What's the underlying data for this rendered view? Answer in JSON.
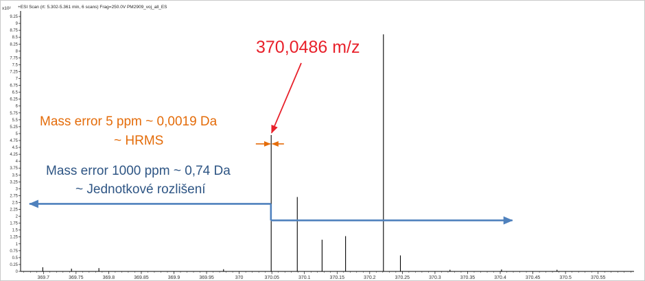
{
  "header": {
    "scan_label": "+ESI Scan (rt: 5.302-5.361 min, 6 scans) Frag=250.0V PM2909_voj_all_ES",
    "y_multiplier": "x10²"
  },
  "chart_data": {
    "type": "bar",
    "subtype": "mass-spectrum-stick",
    "title": "+ESI Scan (rt: 5.302-5.361 min, 6 scans) Frag=250.0V PM2909_voj_all_ES",
    "xlabel": "",
    "ylabel": "",
    "y_multiplier": "x10²",
    "xlim": [
      369.665,
      370.605
    ],
    "ylim": [
      0,
      9.45
    ],
    "x_ticks": [
      369.7,
      369.75,
      369.8,
      369.85,
      369.9,
      369.95,
      370,
      370.05,
      370.1,
      370.15,
      370.2,
      370.25,
      370.3,
      370.35,
      370.4,
      370.45,
      370.5,
      370.55
    ],
    "x_tick_labels": [
      "369.7",
      "369.75",
      "369.8",
      "369.85",
      "369.9",
      "369.95",
      "370",
      "370.05",
      "370.1",
      "370.15",
      "370.2",
      "370.25",
      "370.3",
      "370.35",
      "370.4",
      "370.45",
      "370.5",
      "370.55"
    ],
    "y_ticks": [
      0,
      0.25,
      0.5,
      0.75,
      1,
      1.25,
      1.5,
      1.75,
      2,
      2.25,
      2.5,
      2.75,
      3,
      3.25,
      3.5,
      3.75,
      4,
      4.25,
      4.5,
      4.75,
      5,
      5.25,
      5.5,
      5.75,
      6,
      6.25,
      6.5,
      6.75,
      7,
      7.25,
      7.5,
      7.75,
      8,
      8.25,
      8.5,
      8.75,
      9,
      9.25
    ],
    "y_tick_labels": [
      "0",
      "0.25",
      "0.5",
      "0.75",
      "1",
      "1.25",
      "1.5",
      "1.75",
      "2",
      "2.25",
      "2.5",
      "2.75",
      "3",
      "3.25",
      "3.5",
      "3.75",
      "4",
      "4.25",
      "4.5",
      "4.75",
      "5",
      "5.25",
      "5.5",
      "5.75",
      "6",
      "6.25",
      "6.5",
      "6.75",
      "7",
      "7.25",
      "7.5",
      "7.75",
      "8",
      "8.25",
      "8.5",
      "8.75",
      "9",
      "9.25"
    ],
    "grid": false,
    "peaks": [
      {
        "mz": 369.699,
        "intensity": 0.15
      },
      {
        "mz": 369.743,
        "intensity": 0.1
      },
      {
        "mz": 369.785,
        "intensity": 0.12
      },
      {
        "mz": 369.976,
        "intensity": 0.08
      },
      {
        "mz": 370.049,
        "intensity": 4.95
      },
      {
        "mz": 370.089,
        "intensity": 2.7
      },
      {
        "mz": 370.127,
        "intensity": 1.15
      },
      {
        "mz": 370.163,
        "intensity": 1.28
      },
      {
        "mz": 370.221,
        "intensity": 8.6
      },
      {
        "mz": 370.247,
        "intensity": 0.58
      },
      {
        "mz": 370.323,
        "intensity": 0.06
      },
      {
        "mz": 370.402,
        "intensity": 0.07
      },
      {
        "mz": 370.487,
        "intensity": 0.06
      }
    ],
    "annotations": {
      "peak_label": "370,0486 m/z",
      "hrms_line1": "Mass error 5 ppm ~ 0,0019 Da",
      "hrms_line2": "~ HRMS",
      "unit_line1": "Mass error 1000 ppm ~ 0,74 Da",
      "unit_line2": "~ Jednotkové rozlišení",
      "peak_mz": 370.0486,
      "hrms_window_da": 0.0019,
      "unit_window_da": 0.74
    },
    "colors": {
      "peak_label": "#e8202a",
      "hrms": "#e46c0a",
      "unit": "#2e5584",
      "unit_arrow": "#4f81bd",
      "stick": "#000000"
    }
  }
}
